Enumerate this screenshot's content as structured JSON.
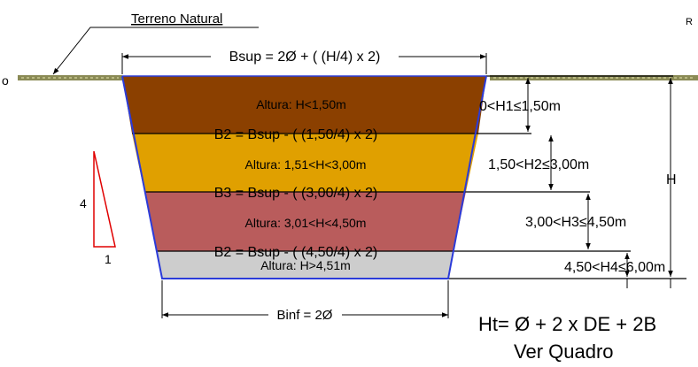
{
  "labels": {
    "terreno_natural": "Terreno Natural",
    "bsup": "Bsup = 2Ø + ( (H/4) x 2)",
    "b2_first": "B2 = Bsup - ( (1,50/4) x 2)",
    "b3": "B3 = Bsup - ( (3,00/4) x 2)",
    "b2_second": "B2 = Bsup - ( (4,50/4) x 2)",
    "binf": "Binf = 2Ø",
    "h": "H",
    "formula": "Ht= Ø + 2 x DE + 2B",
    "ver_quadro": "Ver Quadro",
    "corner_text": "R",
    "left_edge_text": "o"
  },
  "layers": [
    {
      "label": "Altura: H<1,50m",
      "range": "0<H1≤1,50m",
      "color": "#8B4000"
    },
    {
      "label": "Altura: 1,51<H<3,00m",
      "range": "1,50<H2≤3,00m",
      "color": "#E0A000"
    },
    {
      "label": "Altura: 3,01<H<4,50m",
      "range": "3,00<H3≤4,50m",
      "color": "#B95C5C"
    },
    {
      "label": "Altura: H>4,51m",
      "range": "4,50<H4≤6,00m",
      "color": "#CDCDCD"
    }
  ],
  "slope": {
    "vertical": "4",
    "horizontal": "1"
  },
  "colors": {
    "outline": "#2B3BD9",
    "ground": "#8A8A55",
    "slope_triangle": "#E00000",
    "dimension": "#000000"
  }
}
